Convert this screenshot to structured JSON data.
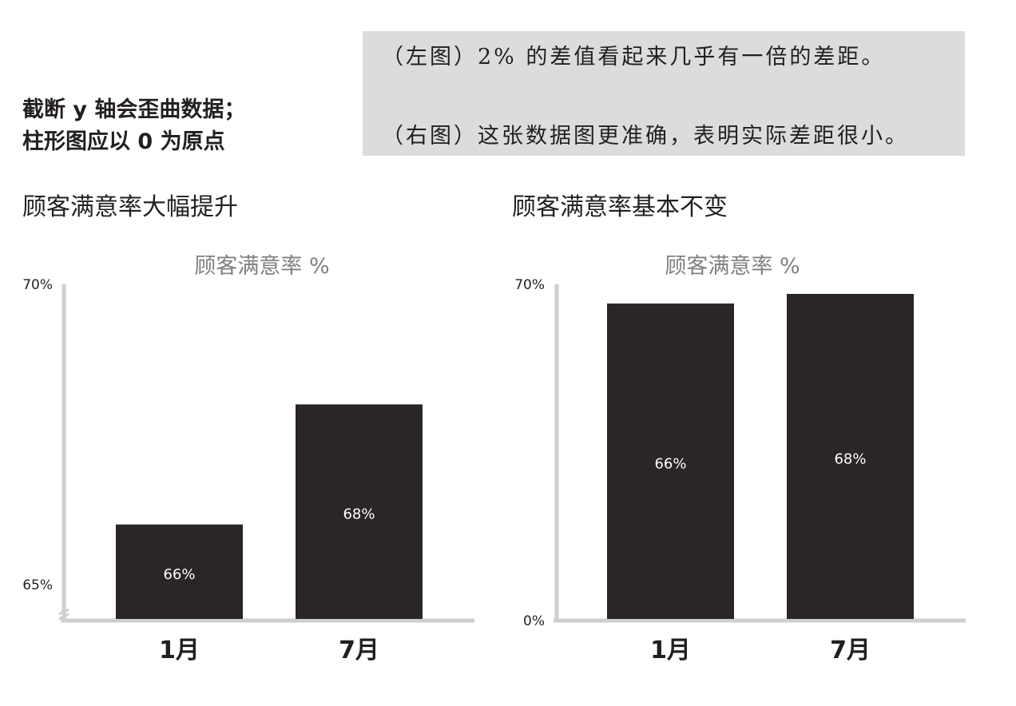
{
  "heading": {
    "line1": "截断 y 轴会歪曲数据；",
    "line2": "柱形图应以 0 为原点"
  },
  "note": {
    "line1": "（左图）2% 的差值看起来几乎有一倍的差距。",
    "line2": "（右图）这张数据图更准确，表明实际差距很小。"
  },
  "panels": {
    "left_title": "顾客满意率大幅提升",
    "right_title": "顾客满意率基本不变"
  },
  "colors": {
    "bar": "#2a2526",
    "axis": "#cfcfcf",
    "subtitle": "#808080",
    "note_bg": "#dcdcdc"
  },
  "chart_data": [
    {
      "type": "bar",
      "title": "顾客满意率 %",
      "categories": [
        "1月",
        "7月"
      ],
      "values": [
        66,
        68
      ],
      "value_labels": [
        "66%",
        "68%"
      ],
      "ylim": [
        64.4,
        70
      ],
      "yticks": [
        65,
        70
      ],
      "ytick_labels": [
        "65%",
        "70%"
      ],
      "axis_break": true
    },
    {
      "type": "bar",
      "title": "顾客满意率 %",
      "categories": [
        "1月",
        "7月"
      ],
      "values": [
        66,
        68
      ],
      "value_labels": [
        "66%",
        "68%"
      ],
      "ylim": [
        0,
        70
      ],
      "yticks": [
        0,
        70
      ],
      "ytick_labels": [
        "0%",
        "70%"
      ],
      "axis_break": false
    }
  ]
}
